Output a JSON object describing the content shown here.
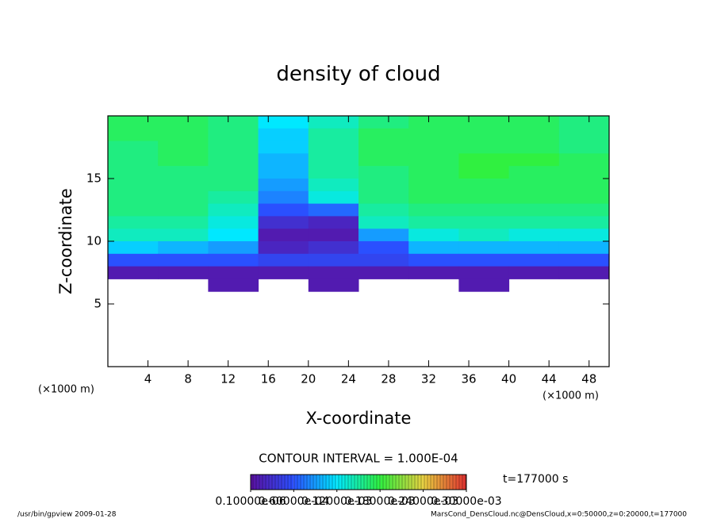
{
  "chart_data": {
    "type": "heatmap",
    "title": "density of cloud",
    "x_label": "X-coordinate",
    "y_label": "Z-coordinate",
    "x_unit": "(×1000 m)",
    "y_unit": "(×1000 m)",
    "xlim": [
      0,
      50
    ],
    "ylim": [
      0,
      20
    ],
    "xticks": [
      4,
      8,
      12,
      16,
      20,
      24,
      28,
      32,
      36,
      40,
      44,
      48
    ],
    "yticks": [
      5,
      10,
      15
    ],
    "field": {
      "x_edges": [
        0,
        5,
        10,
        15,
        20,
        25,
        30,
        35,
        40,
        45,
        50
      ],
      "z_edges": [
        20,
        19,
        18,
        17,
        16,
        15,
        14,
        13,
        12,
        11,
        10,
        9,
        8,
        7,
        6
      ],
      "values": [
        [
          0.00017,
          0.00017,
          0.00016,
          0.00012,
          0.00014,
          0.00016,
          0.00017,
          0.00017,
          0.00017,
          0.00016
        ],
        [
          0.00017,
          0.00017,
          0.00016,
          0.00011,
          0.00015,
          0.00017,
          0.00017,
          0.00017,
          0.00017,
          0.00016
        ],
        [
          0.00016,
          0.00017,
          0.00016,
          0.00011,
          0.00015,
          0.00017,
          0.00017,
          0.00017,
          0.00017,
          0.00016
        ],
        [
          0.00016,
          0.00017,
          0.00016,
          0.0001,
          0.00015,
          0.00017,
          0.00017,
          0.00018,
          0.00018,
          0.00017
        ],
        [
          0.00016,
          0.00016,
          0.00016,
          0.0001,
          0.00015,
          0.00016,
          0.00017,
          0.00018,
          0.00017,
          0.00017
        ],
        [
          0.00016,
          0.00016,
          0.00016,
          9e-05,
          0.00014,
          0.00016,
          0.00017,
          0.00017,
          0.00017,
          0.00017
        ],
        [
          0.00016,
          0.00016,
          0.00015,
          8e-05,
          0.00013,
          0.00016,
          0.00017,
          0.00017,
          0.00017,
          0.00017
        ],
        [
          0.00016,
          0.00016,
          0.00014,
          6e-05,
          7e-05,
          0.00015,
          0.00016,
          0.00016,
          0.00016,
          0.00016
        ],
        [
          0.00015,
          0.00015,
          0.00013,
          3e-05,
          2e-05,
          0.00014,
          0.00015,
          0.00015,
          0.00015,
          0.00015
        ],
        [
          0.00014,
          0.00014,
          0.00012,
          1e-05,
          1e-05,
          9e-05,
          0.00013,
          0.00014,
          0.00013,
          0.00013
        ],
        [
          0.00011,
          0.0001,
          9e-05,
          2e-05,
          3e-05,
          6e-05,
          0.0001,
          0.0001,
          0.0001,
          0.0001
        ],
        [
          6e-05,
          6e-05,
          6e-05,
          5e-05,
          5e-05,
          5e-05,
          6e-05,
          6e-05,
          6e-05,
          6e-05
        ],
        [
          1e-05,
          1e-05,
          1e-05,
          1e-05,
          1e-05,
          1e-05,
          1e-05,
          1e-05,
          1e-05,
          1e-05
        ],
        [
          null,
          null,
          1e-05,
          null,
          1e-05,
          null,
          null,
          1e-05,
          null,
          null
        ]
      ]
    },
    "contour_interval": "CONTOUR INTERVAL = 1.000E-04",
    "colorbar": {
      "ticks": [
        {
          "value": 1e-07,
          "label": "0.10000e-06"
        },
        {
          "value": 6e-05,
          "label": "0.60000e-04"
        },
        {
          "value": 0.00012,
          "label": "0.12000e-03"
        },
        {
          "value": 0.00018,
          "label": "0.18000e-03"
        },
        {
          "value": 0.00024,
          "label": "0.24000e-03"
        },
        {
          "value": 0.0003,
          "label": "0.30000e-03"
        }
      ],
      "colors": [
        "#5a10a0",
        "#2a50ff",
        "#00e8ff",
        "#30f040",
        "#e8d040",
        "#e03030"
      ]
    },
    "time_label": "t=177000 s",
    "footer_left": "/usr/bin/gpview  2009-01-28",
    "footer_right": "MarsCond_DensCloud.nc@DensCloud,x=0:50000,z=0:20000,t=177000"
  }
}
